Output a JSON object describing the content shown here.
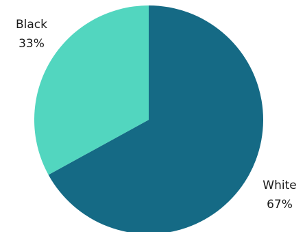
{
  "chart_data": {
    "type": "pie",
    "title": "",
    "start_angle_deg": 0,
    "direction": "clockwise",
    "slices": [
      {
        "name": "White",
        "value": 67,
        "label_pct": "67%",
        "color": "#156a85"
      },
      {
        "name": "Black",
        "value": 33,
        "label_pct": "33%",
        "color": "#52d6bf"
      }
    ]
  }
}
